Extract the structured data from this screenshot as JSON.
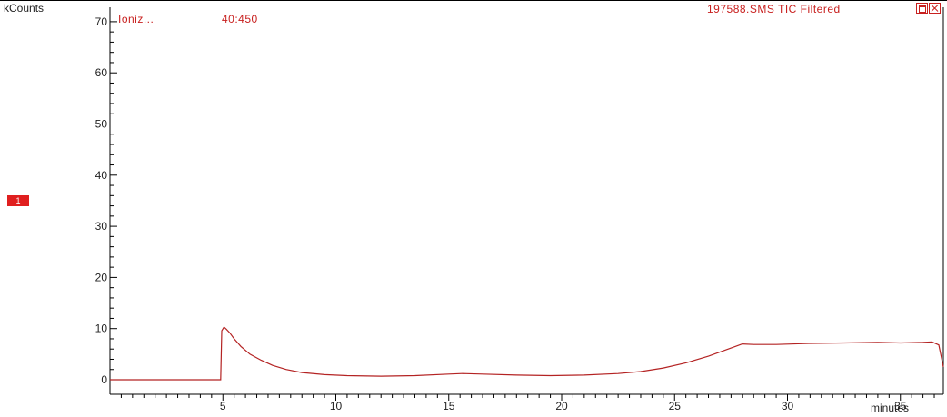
{
  "header": {
    "y_unit": "kCounts",
    "ion_label": "Ioniz...",
    "mass_range": "40:450",
    "trace_title": "197588.SMS TIC Filtered"
  },
  "trace_marker": "1",
  "colors": {
    "trace": "#b42323",
    "accent": "#c8201f",
    "marker_bg": "#e01f1f",
    "axis": "#000000"
  },
  "icons": [
    "restore-window-icon",
    "close-window-icon"
  ],
  "chart_data": {
    "type": "line",
    "xlabel": "minutes",
    "ylabel": "kCounts",
    "xlim": [
      0,
      37
    ],
    "ylim": [
      -2,
      72
    ],
    "x_ticks": [
      5,
      10,
      15,
      20,
      25,
      30,
      35
    ],
    "y_ticks": [
      0,
      10,
      20,
      30,
      40,
      50,
      60,
      70
    ],
    "grid": false,
    "legend": "none",
    "series": [
      {
        "x": [
          0.0,
          4.9,
          4.95,
          5.05,
          5.15,
          5.3,
          5.5,
          5.8,
          6.2,
          6.7,
          7.2,
          7.8,
          8.5,
          9.5,
          10.5,
          12.0,
          13.5,
          15.0,
          15.6,
          16.5,
          18.0,
          19.5,
          21.0,
          22.5,
          23.5,
          24.5,
          25.5,
          26.5,
          27.5,
          28.0,
          28.5,
          29.5,
          31.0,
          32.5,
          34.0,
          35.0,
          36.0,
          36.4,
          36.7,
          37.0
        ],
        "y": [
          0.0,
          0.0,
          9.6,
          10.3,
          9.9,
          9.2,
          8.0,
          6.5,
          5.0,
          3.8,
          2.8,
          2.0,
          1.4,
          1.0,
          0.8,
          0.7,
          0.8,
          1.1,
          1.2,
          1.1,
          0.9,
          0.8,
          0.9,
          1.2,
          1.6,
          2.3,
          3.3,
          4.6,
          6.2,
          7.0,
          6.9,
          6.9,
          7.1,
          7.2,
          7.3,
          7.2,
          7.3,
          7.4,
          6.8,
          2.5
        ]
      }
    ]
  }
}
